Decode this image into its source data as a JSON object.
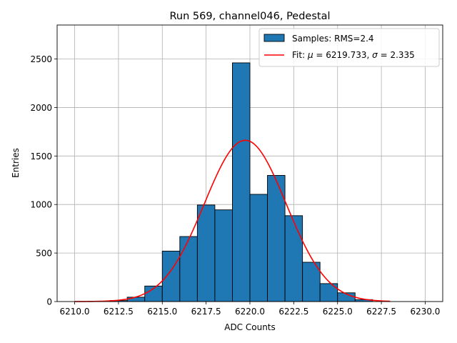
{
  "chart_data": {
    "type": "bar",
    "title": "Run 569, channel046, Pedestal",
    "xlabel": "ADC Counts",
    "ylabel": "Entries",
    "xlim": [
      6209.0,
      6231.0
    ],
    "ylim": [
      0,
      2850
    ],
    "grid": true,
    "legend_position": "top-right",
    "xticks": [
      6210.0,
      6212.5,
      6215.0,
      6217.5,
      6220.0,
      6222.5,
      6225.0,
      6227.5,
      6230.0
    ],
    "xtick_labels": [
      "6210.0",
      "6212.5",
      "6215.0",
      "6217.5",
      "6220.0",
      "6222.5",
      "6225.0",
      "6227.5",
      "6230.0"
    ],
    "yticks": [
      0,
      500,
      1000,
      1500,
      2000,
      2500
    ],
    "ytick_labels": [
      "0",
      "500",
      "1000",
      "1500",
      "2000",
      "2500"
    ],
    "histogram": {
      "name": "Samples: RMS=2.4",
      "color": "#1f77b4",
      "bin_edges": [
        6212,
        6213,
        6214,
        6215,
        6216,
        6217,
        6218,
        6219,
        6220,
        6221,
        6222,
        6223,
        6224,
        6225,
        6226,
        6227
      ],
      "values": [
        10,
        45,
        160,
        520,
        670,
        995,
        945,
        2460,
        1105,
        1300,
        885,
        405,
        185,
        90,
        20
      ]
    },
    "fit": {
      "name_prefix": "Fit: ",
      "mu_symbol": "μ",
      "mu_value": " = 6219.733, ",
      "sigma_symbol": "σ",
      "sigma_value": " = 2.335",
      "mu": 6219.733,
      "sigma": 2.335,
      "amplitude": 1662,
      "x_range": [
        6210.0,
        6228.0
      ],
      "color": "#ff0000"
    }
  }
}
